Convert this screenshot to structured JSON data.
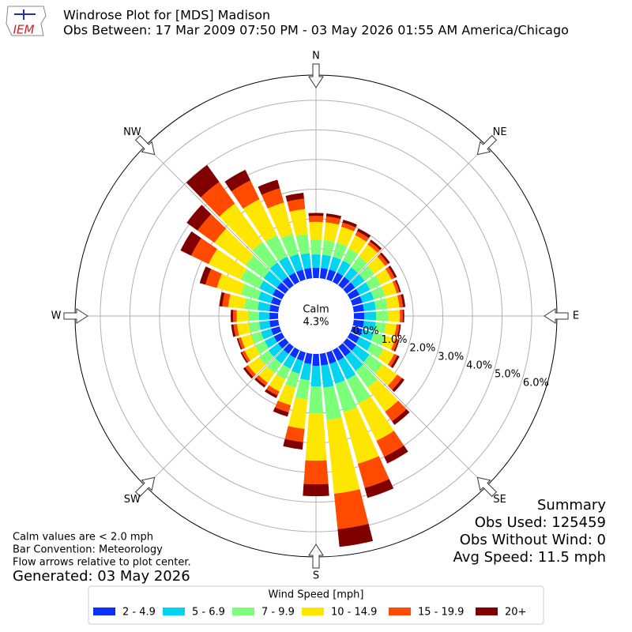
{
  "chart_data": {
    "type": "windrose",
    "logo_text": "IEM",
    "title": "Windrose Plot for [MDS] Madison",
    "subtitle": "Obs Between: 17 Mar 2009 07:50 PM - 03 May 2026 01:55 AM America/Chicago",
    "compass": [
      "N",
      "NE",
      "E",
      "SE",
      "S",
      "SW",
      "W",
      "NW"
    ],
    "calm": {
      "name": "Calm",
      "value": 4.3,
      "label": "4.3%"
    },
    "x": [
      0,
      10,
      20,
      30,
      40,
      50,
      60,
      70,
      80,
      90,
      100,
      110,
      120,
      130,
      140,
      150,
      160,
      170,
      180,
      190,
      200,
      210,
      220,
      230,
      240,
      250,
      260,
      270,
      280,
      290,
      300,
      310,
      320,
      330,
      340,
      350
    ],
    "ylim": [
      0,
      6.85
    ],
    "yticks": [
      {
        "value": 0,
        "label": "0.0%"
      },
      {
        "value": 1,
        "label": "1.0%"
      },
      {
        "value": 2,
        "label": "2.0%"
      },
      {
        "value": 3,
        "label": "3.0%"
      },
      {
        "value": 4,
        "label": "4.0%"
      },
      {
        "value": 5,
        "label": "5.0%"
      },
      {
        "value": 6,
        "label": "6.0%"
      }
    ],
    "grid": true,
    "legend_title": "Wind Speed [mph]",
    "series": [
      {
        "name": "2 - 4.9",
        "color": "#0b2fff",
        "values": [
          0.35,
          0.35,
          0.35,
          0.35,
          0.35,
          0.35,
          0.35,
          0.35,
          0.35,
          0.35,
          0.35,
          0.35,
          0.35,
          0.4,
          0.4,
          0.4,
          0.4,
          0.4,
          0.4,
          0.35,
          0.3,
          0.3,
          0.3,
          0.3,
          0.3,
          0.3,
          0.3,
          0.3,
          0.3,
          0.3,
          0.35,
          0.35,
          0.35,
          0.35,
          0.35,
          0.35
        ]
      },
      {
        "name": "5 - 6.9",
        "color": "#00d4f0",
        "values": [
          0.45,
          0.45,
          0.45,
          0.45,
          0.4,
          0.4,
          0.4,
          0.4,
          0.4,
          0.4,
          0.4,
          0.4,
          0.45,
          0.55,
          0.6,
          0.7,
          0.7,
          0.75,
          0.7,
          0.55,
          0.45,
          0.4,
          0.4,
          0.4,
          0.35,
          0.35,
          0.35,
          0.35,
          0.4,
          0.45,
          0.5,
          0.55,
          0.6,
          0.6,
          0.55,
          0.5
        ]
      },
      {
        "name": "7 - 9.9",
        "color": "#7cff79",
        "values": [
          0.5,
          0.5,
          0.5,
          0.45,
          0.45,
          0.4,
          0.4,
          0.4,
          0.4,
          0.4,
          0.35,
          0.4,
          0.45,
          0.55,
          0.7,
          0.9,
          1.0,
          1.1,
          0.9,
          0.65,
          0.5,
          0.4,
          0.4,
          0.4,
          0.35,
          0.35,
          0.35,
          0.35,
          0.45,
          0.6,
          0.7,
          0.75,
          0.85,
          0.8,
          0.7,
          0.65
        ]
      },
      {
        "name": "10 - 14.9",
        "color": "#ffe600",
        "values": [
          0.6,
          0.6,
          0.55,
          0.5,
          0.5,
          0.45,
          0.4,
          0.4,
          0.4,
          0.4,
          0.35,
          0.35,
          0.4,
          0.6,
          1.0,
          1.4,
          1.8,
          2.5,
          1.6,
          1.0,
          0.6,
          0.45,
          0.4,
          0.45,
          0.4,
          0.35,
          0.4,
          0.4,
          0.55,
          0.85,
          1.2,
          1.3,
          1.6,
          1.35,
          1.1,
          0.85
        ]
      },
      {
        "name": "15 - 19.9",
        "color": "#ff4a00",
        "values": [
          0.2,
          0.2,
          0.15,
          0.15,
          0.12,
          0.12,
          0.12,
          0.1,
          0.12,
          0.1,
          0.1,
          0.1,
          0.12,
          0.2,
          0.4,
          0.6,
          0.85,
          1.2,
          0.8,
          0.45,
          0.25,
          0.15,
          0.12,
          0.12,
          0.1,
          0.1,
          0.12,
          0.12,
          0.2,
          0.4,
          0.65,
          0.7,
          0.9,
          0.7,
          0.5,
          0.35
        ]
      },
      {
        "name": "20+",
        "color": "#800000",
        "values": [
          0.1,
          0.1,
          0.1,
          0.1,
          0.08,
          0.08,
          0.08,
          0.05,
          0.08,
          0.05,
          0.05,
          0.05,
          0.08,
          0.1,
          0.15,
          0.25,
          0.35,
          0.6,
          0.4,
          0.25,
          0.15,
          0.1,
          0.08,
          0.08,
          0.05,
          0.05,
          0.08,
          0.08,
          0.1,
          0.2,
          0.4,
          0.45,
          0.7,
          0.4,
          0.3,
          0.2
        ]
      }
    ],
    "notes": [
      "Calm values are < 2.0 mph",
      "Bar Convention: Meteorology",
      "Flow arrows relative to plot center."
    ],
    "generated": "Generated: 03 May 2026",
    "summary": [
      "Summary",
      "Obs Used: 125459",
      "Obs Without Wind: 0",
      "Avg Speed: 11.5 mph"
    ]
  }
}
